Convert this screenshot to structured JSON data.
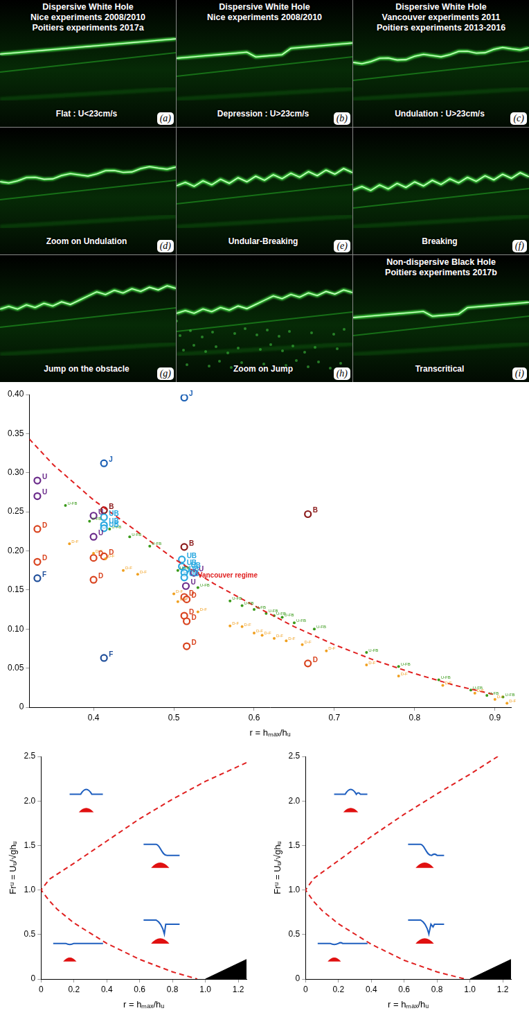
{
  "photo_panels": [
    {
      "letter": "(a)",
      "title_lines": [
        "Dispersive White Hole",
        "Nice experiments 2008/2010",
        "Poitiers experiments 2017a"
      ],
      "caption": "Flat : U<23cm/s"
    },
    {
      "letter": "(b)",
      "title_lines": [
        "Dispersive White Hole",
        "Nice experiments 2008/2010"
      ],
      "caption": "Depression : U>23cm/s"
    },
    {
      "letter": "(c)",
      "title_lines": [
        "Dispersive White Hole",
        "Vancouver experiments 2011",
        "Poitiers experiments 2013-2016"
      ],
      "caption": "Undulation : U>23cm/s"
    },
    {
      "letter": "(d)",
      "caption": "Zoom on Undulation"
    },
    {
      "letter": "(e)",
      "caption": "Undular-Breaking"
    },
    {
      "letter": "(f)",
      "caption": "Breaking"
    },
    {
      "letter": "(g)",
      "caption": "Jump on the obstacle"
    },
    {
      "letter": "(h)",
      "caption": "Zoom on Jump"
    },
    {
      "letter": "(i)",
      "title_lines": [
        "Non-dispersive Black Hole",
        "Poitiers experiments 2017b"
      ],
      "caption": "Transcritical"
    }
  ],
  "chart_data": [
    {
      "type": "scatter",
      "x_label": "r = hₘₐₓ/hᵤ",
      "xlim": [
        0.32,
        0.92
      ],
      "xticks": [
        0.4,
        0.5,
        0.6,
        0.7,
        0.8,
        0.9
      ],
      "ylim": [
        0,
        0.4
      ],
      "yticks": [
        0,
        0.05,
        {
          "value": 0.1,
          "label": "0.10"
        },
        0.15,
        {
          "value": 0.2,
          "label": "0.20"
        },
        0.25,
        {
          "value": 0.3,
          "label": "0.30"
        },
        0.35,
        {
          "value": 0.4,
          "label": "0.40"
        }
      ],
      "grid": false,
      "series": [
        {
          "type": "line",
          "line_style": "dashed",
          "color": "#e02020",
          "marker": "none",
          "x": [
            0.32,
            0.35,
            0.4,
            0.45,
            0.5,
            0.55,
            0.6,
            0.65,
            0.7,
            0.75,
            0.8,
            0.85,
            0.9
          ],
          "values": [
            0.343,
            0.31,
            0.265,
            0.228,
            0.19,
            0.158,
            0.13,
            0.103,
            0.08,
            0.06,
            0.043,
            0.028,
            0.016
          ]
        },
        {
          "name": "U-FB",
          "color": "#3a9a1a",
          "marker": "dot",
          "x": [
            0.365,
            0.395,
            0.42,
            0.445,
            0.47,
            0.505,
            0.53,
            0.57,
            0.585,
            0.6,
            0.615,
            0.625,
            0.635,
            0.65,
            0.675,
            0.74,
            0.78,
            0.83,
            0.87,
            0.89,
            0.91
          ],
          "values": [
            0.258,
            0.238,
            0.228,
            0.218,
            0.206,
            0.175,
            0.153,
            0.136,
            0.13,
            0.125,
            0.12,
            0.117,
            0.115,
            0.108,
            0.1,
            0.07,
            0.052,
            0.035,
            0.022,
            0.015,
            0.013
          ]
        },
        {
          "name": "D-F",
          "color": "#f0a020",
          "marker": "dot",
          "x": [
            0.37,
            0.4,
            0.415,
            0.437,
            0.455,
            0.5,
            0.505,
            0.53,
            0.57,
            0.585,
            0.6,
            0.61,
            0.625,
            0.64,
            0.66,
            0.69,
            0.74,
            0.78,
            0.835,
            0.875,
            0.9,
            0.915
          ],
          "values": [
            0.209,
            0.197,
            0.19,
            0.175,
            0.17,
            0.145,
            0.135,
            0.122,
            0.104,
            0.103,
            0.095,
            0.092,
            0.088,
            0.085,
            0.08,
            0.072,
            0.054,
            0.04,
            0.028,
            0.018,
            0.01,
            0.005
          ]
        },
        {
          "name": "F",
          "color": "#1f4e9a",
          "marker": "circle",
          "x": [
            0.33,
            0.413
          ],
          "values": [
            0.165,
            0.063
          ]
        },
        {
          "name": "D",
          "color": "#d9431e",
          "marker": "circle",
          "x": [
            0.33,
            0.33,
            0.4,
            0.4,
            0.413,
            0.513,
            0.516,
            0.513,
            0.516,
            0.516,
            0.667
          ],
          "values": [
            0.228,
            0.186,
            0.163,
            0.191,
            0.193,
            0.141,
            0.138,
            0.117,
            0.11,
            0.078,
            0.056
          ]
        },
        {
          "name": "U",
          "color": "#6a2a8a",
          "marker": "circle",
          "x": [
            0.33,
            0.33,
            0.4,
            0.4,
            0.525,
            0.515
          ],
          "values": [
            0.29,
            0.27,
            0.245,
            0.218,
            0.172,
            0.155
          ]
        },
        {
          "name": "UB",
          "color": "#29a8e0",
          "marker": "circle",
          "x": [
            0.413,
            0.413,
            0.413,
            0.51,
            0.51,
            0.515,
            0.513,
            0.513
          ],
          "values": [
            0.243,
            0.233,
            0.229,
            0.189,
            0.18,
            0.176,
            0.172,
            0.166
          ]
        },
        {
          "name": "B",
          "color": "#8b1a1a",
          "marker": "circle",
          "x": [
            0.413,
            0.513,
            0.667
          ],
          "values": [
            0.252,
            0.205,
            0.247
          ]
        },
        {
          "name": "J",
          "color": "#1a5fb4",
          "marker": "circle",
          "x": [
            0.513,
            0.413
          ],
          "values": [
            0.396,
            0.312
          ]
        }
      ],
      "annotations": [
        {
          "text": "Vancouver regime",
          "x": 0.53,
          "y": 0.168,
          "color": "#e02020"
        }
      ]
    },
    {
      "type": "scatter",
      "x_label": "r = hₘₐₓ/hᵤ",
      "y_label": "Frᵘ = Uᵤ/√ghᵤ",
      "xlim": [
        0,
        1.25
      ],
      "xticks": [
        0,
        0.2,
        0.4,
        0.6,
        0.8,
        {
          "value": 1,
          "label": "1.0"
        },
        1.2
      ],
      "ylim": [
        0,
        2.5
      ],
      "yticks": [
        0,
        0.5,
        {
          "value": 1,
          "label": "1.0"
        },
        1.5,
        {
          "value": 2,
          "label": "2.0"
        },
        2.5
      ],
      "grid": false,
      "series": [
        {
          "type": "line",
          "line_style": "dashed",
          "color": "#e02020",
          "marker": "none",
          "x": [
            1.25,
            1.0,
            0.8,
            0.6,
            0.4,
            0.2,
            0.05,
            0,
            0.05,
            0.1,
            0.2,
            0.4,
            0.6,
            0.8,
            0.95
          ],
          "values": [
            2.43,
            2.22,
            2.02,
            1.8,
            1.55,
            1.3,
            1.12,
            1.0,
            0.88,
            0.78,
            0.63,
            0.4,
            0.22,
            0.08,
            0
          ]
        },
        {
          "type": "area",
          "color": "#000000",
          "marker": "none",
          "x": [
            1.0,
            1.25
          ],
          "values": [
            0,
            0.22
          ]
        }
      ]
    },
    {
      "type": "scatter",
      "x_label": "r = hₘₐₓ/hᵤ",
      "y_label": "Frᵘ = Uᵤ/√ghᵤ",
      "xlim": [
        0,
        1.25
      ],
      "xticks": [
        0,
        0.2,
        0.4,
        0.6,
        0.8,
        {
          "value": 1,
          "label": "1.0"
        },
        1.2
      ],
      "ylim": [
        0,
        2.5
      ],
      "yticks": [
        0,
        0.5,
        {
          "value": 1,
          "label": "1.0"
        },
        1.5,
        {
          "value": 2,
          "label": "2.0"
        },
        2.5
      ],
      "grid": false,
      "series": [
        {
          "type": "line",
          "line_style": "dashed",
          "color": "#e02020",
          "marker": "none",
          "x": [
            1.17,
            1.0,
            0.8,
            0.6,
            0.4,
            0.2,
            0.05,
            0,
            0.05,
            0.1,
            0.2,
            0.4,
            0.6,
            0.8,
            0.97
          ],
          "values": [
            2.5,
            2.3,
            2.08,
            1.85,
            1.6,
            1.33,
            1.13,
            1.0,
            0.87,
            0.77,
            0.62,
            0.39,
            0.21,
            0.08,
            0
          ]
        },
        {
          "type": "area",
          "color": "#000000",
          "marker": "none",
          "x": [
            1.0,
            1.25
          ],
          "values": [
            0,
            0.22
          ]
        }
      ]
    }
  ]
}
